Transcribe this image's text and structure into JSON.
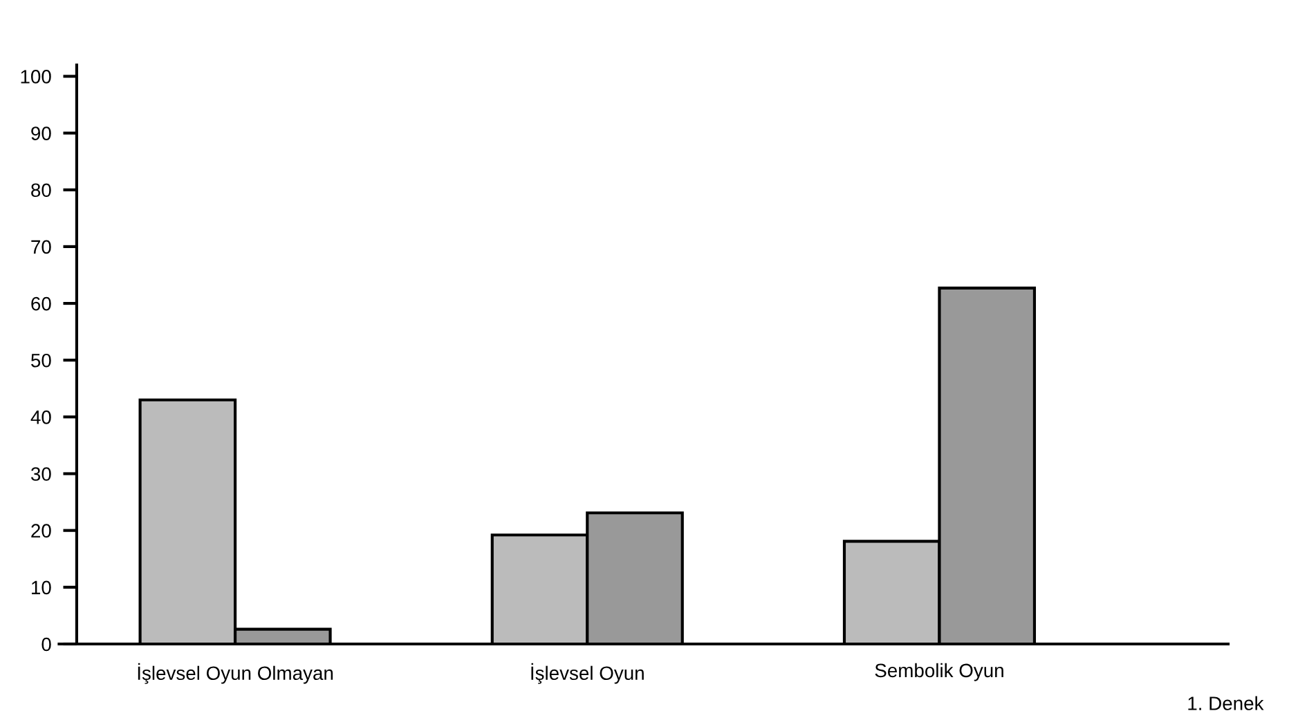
{
  "chart_data": {
    "type": "bar",
    "xlabel": "1. Denek",
    "categories": [
      "İşlevsel Oyun Olmayan",
      "İşlevsel Oyun",
      "Sembolik Oyun"
    ],
    "series": [
      {
        "color": "#bbbbbb",
        "values": [
          43,
          19.2,
          18.1
        ]
      },
      {
        "color": "#999999",
        "values": [
          2.6,
          23.1,
          62.7
        ]
      }
    ],
    "ylim": [
      0,
      102
    ],
    "yticks": [
      0,
      10,
      20,
      30,
      40,
      50,
      60,
      70,
      80,
      90,
      100
    ],
    "grid": false,
    "legend": false
  }
}
